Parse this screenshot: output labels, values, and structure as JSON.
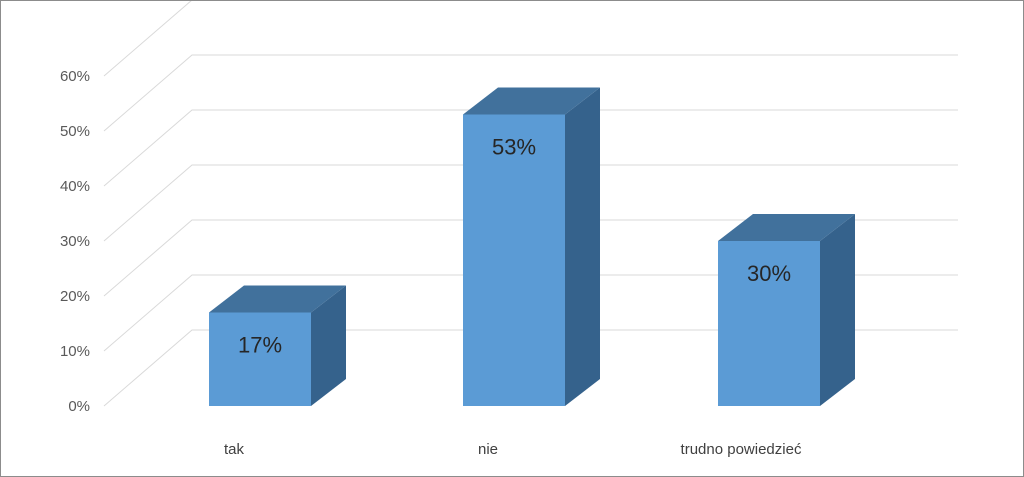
{
  "chart_data": {
    "type": "bar",
    "style": "3d-column",
    "categories": [
      "tak",
      "nie",
      "trudno powiedzieć"
    ],
    "values": [
      17,
      53,
      30
    ],
    "data_labels": [
      "17%",
      "53%",
      "30%"
    ],
    "ylim": [
      0,
      60
    ],
    "y_ticks": [
      "0%",
      "10%",
      "20%",
      "30%",
      "40%",
      "50%",
      "60%"
    ],
    "grid": true,
    "legend": "none",
    "title": "",
    "xlabel": "",
    "ylabel": "",
    "colors": {
      "bar_front": "#5b9bd5",
      "bar_top": "#41719c",
      "bar_side": "#35628c",
      "grid": "#d9d9d9",
      "frame": "#8c8c8c"
    }
  }
}
